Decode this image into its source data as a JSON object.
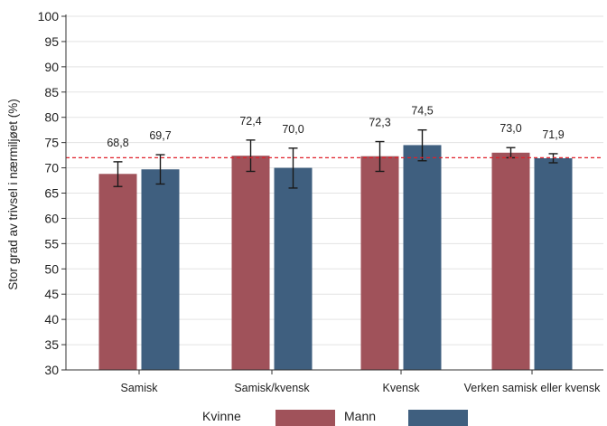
{
  "chart_data": {
    "type": "bar",
    "ylabel": "Stor grad av trivsel i nærmiljøet (%)",
    "ylim": [
      30,
      100
    ],
    "yticks": [
      30,
      35,
      40,
      45,
      50,
      55,
      60,
      65,
      70,
      75,
      80,
      85,
      90,
      95,
      100
    ],
    "grid": true,
    "legend_position": "bottom",
    "categories": [
      "Samisk",
      "Samisk/kvensk",
      "Kvensk",
      "Verken samisk eller kvensk"
    ],
    "series": [
      {
        "name": "Kvinne",
        "color": "#a0525a",
        "values": [
          68.8,
          72.4,
          72.3,
          73.0
        ],
        "labels": [
          "68,8",
          "72,4",
          "72,3",
          "73,0"
        ],
        "err_low": [
          66.3,
          69.3,
          69.3,
          72.0
        ],
        "err_high": [
          71.2,
          75.5,
          75.2,
          74.0
        ]
      },
      {
        "name": "Mann",
        "color": "#3f5f7f",
        "values": [
          69.7,
          70.0,
          74.5,
          71.9
        ],
        "labels": [
          "69,7",
          "70,0",
          "74,5",
          "71,9"
        ],
        "err_low": [
          66.8,
          66.0,
          71.4,
          71.0
        ],
        "err_high": [
          72.6,
          73.9,
          77.5,
          72.8
        ]
      }
    ],
    "reference_line": {
      "value": 72,
      "color": "#e0202a",
      "style": "dashed"
    }
  }
}
